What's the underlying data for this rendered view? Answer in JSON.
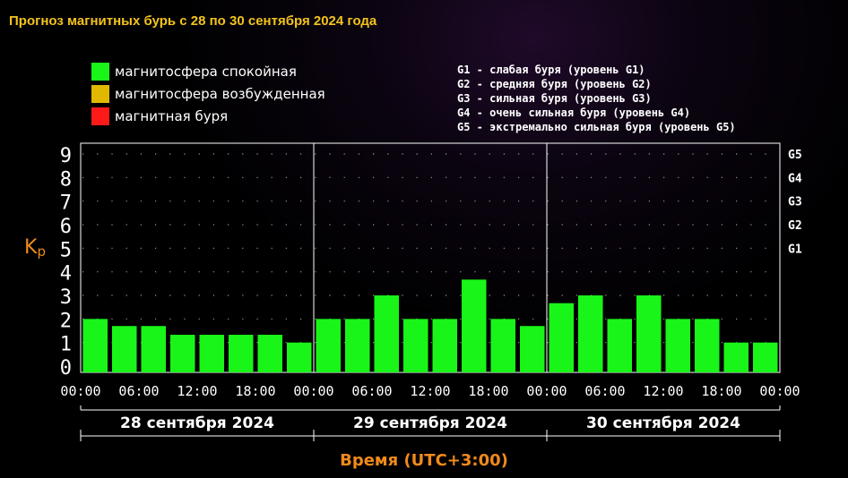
{
  "title": "Прогноз магнитных бурь с 28 по 30 сентября 2024 года",
  "legend": [
    {
      "label": "магнитосфера спокойная",
      "color": "#19f519"
    },
    {
      "label": "магнитосфера возбужденная",
      "color": "#e0b800"
    },
    {
      "label": "магнитная буря",
      "color": "#ff1a1a"
    }
  ],
  "g_levels": [
    "G1 - слабая буря (уровень G1)",
    "G2 - средняя буря (уровень G2)",
    "G3 - сильная буря (уровень G3)",
    "G4 - очень сильная буря (уровень G4)",
    "G5 - экстремально сильная буря (уровень G5)"
  ],
  "colors": {
    "quiet": "#19f519",
    "axis": "#ffffff",
    "accent": "#f08a1c"
  },
  "chart_data": {
    "type": "bar",
    "ylabel": "Kp",
    "xlabel": "Время (UTC+3:00)",
    "ylim": [
      0,
      9
    ],
    "yticks": [
      "0",
      "1",
      "2",
      "3",
      "4",
      "5",
      "6",
      "7",
      "8",
      "9"
    ],
    "right_ticks": [
      {
        "kp": 5,
        "label": "G1"
      },
      {
        "kp": 6,
        "label": "G2"
      },
      {
        "kp": 7,
        "label": "G3"
      },
      {
        "kp": 8,
        "label": "G4"
      },
      {
        "kp": 9,
        "label": "G5"
      }
    ],
    "grid": true,
    "days": [
      {
        "date": "28 сентября 2024",
        "values": [
          2.0,
          1.7,
          1.7,
          1.33,
          1.33,
          1.33,
          1.33,
          1.0
        ]
      },
      {
        "date": "29 сентября 2024",
        "values": [
          2.0,
          2.0,
          3.0,
          2.0,
          2.0,
          3.67,
          2.0,
          1.7
        ]
      },
      {
        "date": "30 сентября 2024",
        "values": [
          2.67,
          3.0,
          2.0,
          3.0,
          2.0,
          2.0,
          1.0,
          1.0
        ]
      }
    ],
    "xtick_labels": [
      "00:00",
      "06:00",
      "12:00",
      "18:00",
      "00:00",
      "06:00",
      "12:00",
      "18:00",
      "00:00",
      "06:00",
      "12:00",
      "18:00",
      "00:00"
    ]
  }
}
